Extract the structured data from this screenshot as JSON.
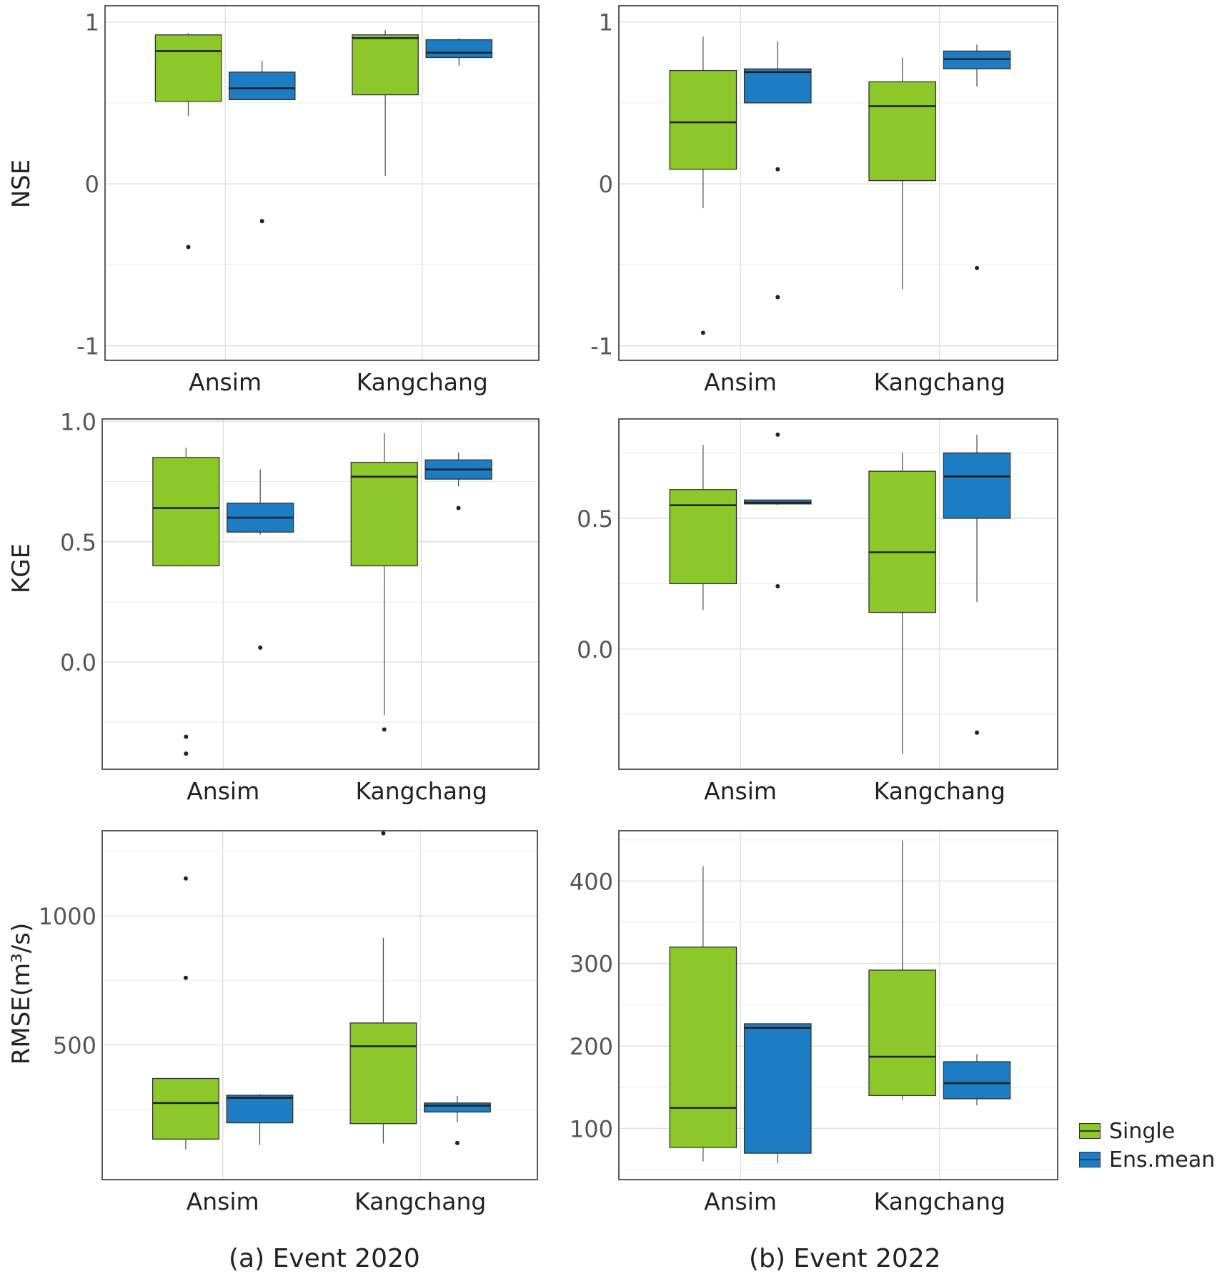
{
  "colors": {
    "single": "#8cc829",
    "ens_mean": "#1c7cc4",
    "grid": "#ebebeb",
    "frame": "#333333"
  },
  "legend": {
    "items": [
      {
        "label": "Single",
        "color": "#8cc829"
      },
      {
        "label": "Ens.mean",
        "color": "#1c7cc4"
      }
    ]
  },
  "captions": {
    "left": "(a) Event 2020",
    "right": "(b) Event 2022"
  },
  "y_labels": {
    "row1": "NSE",
    "row2": "KGE",
    "row3": "RMSE(m³/s)"
  },
  "chart_data": [
    {
      "id": "nse-2020",
      "type": "boxplot",
      "ylabel": "NSE",
      "ylim": [
        -1.09,
        1.1
      ],
      "yticks": [
        -1,
        0,
        1
      ],
      "ytick_labels": [
        "-1",
        "0",
        "1"
      ],
      "minor_ticks": [
        -0.5,
        0.5
      ],
      "categories": [
        "Ansim",
        "Kangchang"
      ],
      "series": [
        {
          "name": "Single",
          "boxes": [
            {
              "whislo": 0.42,
              "q1": 0.51,
              "med": 0.82,
              "q3": 0.92,
              "whishi": 0.93,
              "fliers": [
                -0.39
              ]
            },
            {
              "whislo": 0.05,
              "q1": 0.55,
              "med": 0.9,
              "q3": 0.92,
              "whishi": 0.95,
              "fliers": []
            }
          ]
        },
        {
          "name": "Ens.mean",
          "boxes": [
            {
              "whislo": 0.52,
              "q1": 0.52,
              "med": 0.59,
              "q3": 0.69,
              "whishi": 0.76,
              "fliers": [
                -0.23
              ]
            },
            {
              "whislo": 0.73,
              "q1": 0.78,
              "med": 0.81,
              "q3": 0.89,
              "whishi": 0.9,
              "fliers": []
            }
          ]
        }
      ]
    },
    {
      "id": "nse-2022",
      "type": "boxplot",
      "ylabel": "",
      "ylim": [
        -1.09,
        1.1
      ],
      "yticks": [
        -1,
        0,
        1
      ],
      "ytick_labels": [
        "-1",
        "0",
        "1"
      ],
      "minor_ticks": [
        -0.5,
        0.5
      ],
      "categories": [
        "Ansim",
        "Kangchang"
      ],
      "series": [
        {
          "name": "Single",
          "boxes": [
            {
              "whislo": -0.15,
              "q1": 0.09,
              "med": 0.38,
              "q3": 0.7,
              "whishi": 0.91,
              "fliers": [
                -0.92
              ]
            },
            {
              "whislo": -0.65,
              "q1": 0.02,
              "med": 0.48,
              "q3": 0.63,
              "whishi": 0.78,
              "fliers": []
            }
          ]
        },
        {
          "name": "Ens.mean",
          "boxes": [
            {
              "whislo": 0.5,
              "q1": 0.5,
              "med": 0.69,
              "q3": 0.71,
              "whishi": 0.88,
              "fliers": [
                0.09,
                -0.7
              ]
            },
            {
              "whislo": 0.6,
              "q1": 0.71,
              "med": 0.77,
              "q3": 0.82,
              "whishi": 0.86,
              "fliers": [
                -0.52
              ]
            }
          ]
        }
      ]
    },
    {
      "id": "kge-2020",
      "type": "boxplot",
      "ylabel": "KGE",
      "ylim": [
        -0.445,
        1.01
      ],
      "yticks": [
        0.0,
        0.5,
        1.0
      ],
      "ytick_labels": [
        "0.0",
        "0.5",
        "1.0"
      ],
      "minor_ticks": [
        -0.25,
        0.25,
        0.75
      ],
      "categories": [
        "Ansim",
        "Kangchang"
      ],
      "series": [
        {
          "name": "Single",
          "boxes": [
            {
              "whislo": 0.4,
              "q1": 0.4,
              "med": 0.64,
              "q3": 0.85,
              "whishi": 0.89,
              "fliers": [
                -0.31,
                -0.38
              ]
            },
            {
              "whislo": -0.22,
              "q1": 0.4,
              "med": 0.77,
              "q3": 0.83,
              "whishi": 0.95,
              "fliers": [
                -0.28
              ]
            }
          ]
        },
        {
          "name": "Ens.mean",
          "boxes": [
            {
              "whislo": 0.53,
              "q1": 0.54,
              "med": 0.6,
              "q3": 0.66,
              "whishi": 0.8,
              "fliers": [
                0.06
              ]
            },
            {
              "whislo": 0.73,
              "q1": 0.76,
              "med": 0.8,
              "q3": 0.84,
              "whishi": 0.87,
              "fliers": [
                0.64
              ]
            }
          ]
        }
      ]
    },
    {
      "id": "kge-2022",
      "type": "boxplot",
      "ylabel": "",
      "ylim": [
        -0.46,
        0.88
      ],
      "yticks": [
        0.0,
        0.5
      ],
      "ytick_labels": [
        "0.0",
        "0.5"
      ],
      "minor_ticks": [
        -0.25,
        0.25,
        0.75
      ],
      "categories": [
        "Ansim",
        "Kangchang"
      ],
      "series": [
        {
          "name": "Single",
          "boxes": [
            {
              "whislo": 0.15,
              "q1": 0.25,
              "med": 0.55,
              "q3": 0.61,
              "whishi": 0.78,
              "fliers": []
            },
            {
              "whislo": -0.4,
              "q1": 0.14,
              "med": 0.37,
              "q3": 0.68,
              "whishi": 0.75,
              "fliers": []
            }
          ]
        },
        {
          "name": "Ens.mean",
          "boxes": [
            {
              "whislo": 0.55,
              "q1": 0.555,
              "med": 0.56,
              "q3": 0.57,
              "whishi": 0.57,
              "fliers": [
                0.82,
                0.24
              ]
            },
            {
              "whislo": 0.18,
              "q1": 0.5,
              "med": 0.66,
              "q3": 0.75,
              "whishi": 0.82,
              "fliers": [
                -0.32
              ]
            }
          ]
        }
      ]
    },
    {
      "id": "rmse-2020",
      "type": "boxplot",
      "ylabel": "RMSE(m³/s)",
      "ylim": [
        -22,
        1330
      ],
      "yticks": [
        500,
        1000
      ],
      "ytick_labels": [
        "500",
        "1000"
      ],
      "minor_ticks": [
        250,
        750,
        1250
      ],
      "categories": [
        "Ansim",
        "Kangchang"
      ],
      "series": [
        {
          "name": "Single",
          "boxes": [
            {
              "whislo": 95,
              "q1": 135,
              "med": 275,
              "q3": 370,
              "whishi": 370,
              "fliers": [
                1145,
                760
              ]
            },
            {
              "whislo": 118,
              "q1": 195,
              "med": 495,
              "q3": 585,
              "whishi": 915,
              "fliers": [
                1320
              ]
            }
          ]
        },
        {
          "name": "Ens.mean",
          "boxes": [
            {
              "whislo": 112,
              "q1": 198,
              "med": 295,
              "q3": 305,
              "whishi": 310,
              "fliers": []
            },
            {
              "whislo": 200,
              "q1": 240,
              "med": 265,
              "q3": 275,
              "whishi": 302,
              "fliers": [
                120
              ]
            }
          ]
        }
      ]
    },
    {
      "id": "rmse-2022",
      "type": "boxplot",
      "ylabel": "",
      "ylim": [
        38,
        461
      ],
      "yticks": [
        100,
        200,
        300,
        400
      ],
      "ytick_labels": [
        "100",
        "200",
        "300",
        "400"
      ],
      "minor_ticks": [
        50,
        150,
        250,
        350,
        450
      ],
      "categories": [
        "Ansim",
        "Kangchang"
      ],
      "series": [
        {
          "name": "Single",
          "boxes": [
            {
              "whislo": 60,
              "q1": 77,
              "med": 125,
              "q3": 320,
              "whishi": 418,
              "fliers": []
            },
            {
              "whislo": 135,
              "q1": 140,
              "med": 187,
              "q3": 292,
              "whishi": 449,
              "fliers": []
            }
          ]
        },
        {
          "name": "Ens.mean",
          "boxes": [
            {
              "whislo": 58,
              "q1": 70,
              "med": 222,
              "q3": 227,
              "whishi": 227,
              "fliers": []
            },
            {
              "whislo": 128,
              "q1": 136,
              "med": 155,
              "q3": 181,
              "whishi": 190,
              "fliers": []
            }
          ]
        }
      ]
    }
  ]
}
